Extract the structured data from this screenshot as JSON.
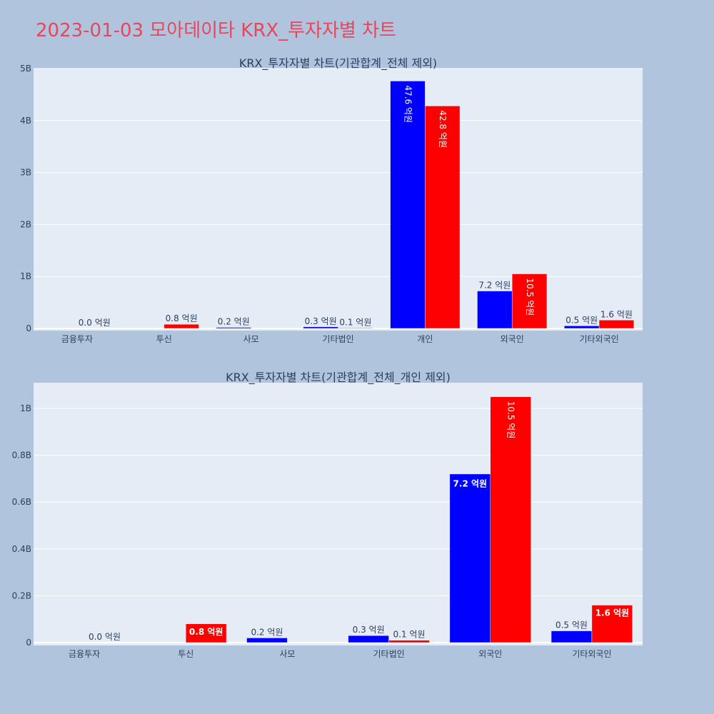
{
  "page": {
    "title": "2023-01-03 모아데이타 KRX_투자자별 차트"
  },
  "colors": {
    "sell": "#0000ff",
    "buy": "#ff0000",
    "plot_bg": "#e5ecf6",
    "page_bg": "#b0c4de",
    "title": "#e8465a"
  },
  "chart_data": [
    {
      "type": "bar",
      "title": "KRX_투자자별 차트(기관합계_전체 제외)",
      "categories": [
        "금융투자",
        "투신",
        "사모",
        "기타법인",
        "개인",
        "외국인",
        "기타외국인"
      ],
      "series": [
        {
          "color": "#0000ff",
          "values": [
            0,
            0,
            20000000,
            30000000,
            4760000000,
            720000000,
            50000000
          ],
          "labels": [
            "",
            "",
            "0.2 억원",
            "0.3 억원",
            "47.6 억원",
            "7.2 억원",
            "0.5 억원"
          ]
        },
        {
          "color": "#ff0000",
          "values": [
            0,
            80000000,
            0,
            10000000,
            4280000000,
            1050000000,
            160000000
          ],
          "labels": [
            "0.0 억원",
            "0.8 억원",
            "",
            "0.1 억원",
            "42.8 억원",
            "10.5 억원",
            "1.6 억원"
          ]
        }
      ],
      "ylim": [
        0,
        5000000000
      ],
      "yticks": [
        0,
        1000000000,
        2000000000,
        3000000000,
        4000000000,
        5000000000
      ],
      "ytick_labels": [
        "0",
        "1B",
        "2B",
        "3B",
        "4B",
        "5B"
      ],
      "grid": true,
      "legend": "none"
    },
    {
      "type": "bar",
      "title": "KRX_투자자별 차트(기관합계_전체_개인 제외)",
      "categories": [
        "금융투자",
        "투신",
        "사모",
        "기타법인",
        "외국인",
        "기타외국인"
      ],
      "series": [
        {
          "color": "#0000ff",
          "values": [
            0,
            0,
            20000000,
            30000000,
            720000000,
            50000000
          ],
          "labels": [
            "",
            "",
            "0.2 억원",
            "0.3 억원",
            "7.2 억원",
            "0.5 억원"
          ]
        },
        {
          "color": "#ff0000",
          "values": [
            0,
            80000000,
            0,
            10000000,
            1050000000,
            160000000
          ],
          "labels": [
            "0.0 억원",
            "0.8 억원",
            "",
            "0.1 억원",
            "10.5 억원",
            "1.6 억원"
          ]
        }
      ],
      "ylim": [
        0,
        1110000000
      ],
      "yticks": [
        0,
        200000000,
        400000000,
        600000000,
        800000000,
        1000000000
      ],
      "ytick_labels": [
        "0",
        "0.2B",
        "0.4B",
        "0.6B",
        "0.8B",
        "1B"
      ],
      "grid": true,
      "legend": "none"
    }
  ]
}
